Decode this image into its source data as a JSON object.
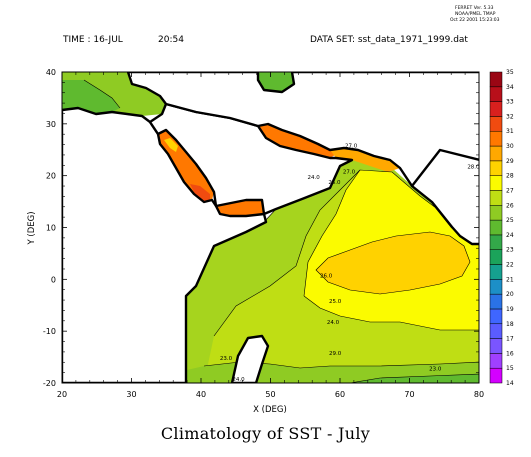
{
  "header": {
    "time_label": "TIME : 16-JUL",
    "time_value": "20:54",
    "dataset_label": "DATA SET: sst_data_1971_1999.dat",
    "ferret_line1": "FERRET Ver. 5.33",
    "ferret_line2": "NOAA/PMEL TMAP",
    "ferret_line3": "Oct 22 2001 15:23:03"
  },
  "caption": "Climatology of SST - July",
  "colors": {
    "land": "#ffffff",
    "coast": "#000000",
    "contour": "#000000"
  },
  "chart_data": {
    "type": "heatmap",
    "title": "Climatology of SST - July",
    "xlabel": "X (DEG)",
    "ylabel": "Y (DEG)",
    "xlim": [
      20,
      80
    ],
    "ylim": [
      -20,
      40
    ],
    "xticks": [
      20,
      30,
      40,
      50,
      60,
      70,
      80
    ],
    "yticks": [
      -20,
      -10,
      0,
      10,
      20,
      30,
      40
    ],
    "colorbar": {
      "levels": [
        14,
        15,
        16,
        17,
        18,
        19,
        20,
        21,
        22,
        23,
        24,
        25,
        26,
        27,
        28,
        29,
        30,
        31,
        32,
        33,
        34,
        35
      ],
      "colors": [
        "#d400ff",
        "#a040ff",
        "#7a55ff",
        "#5a5cff",
        "#3f66ff",
        "#2a72e6",
        "#1c8fc7",
        "#15a08f",
        "#1ba35a",
        "#33a849",
        "#5fba2f",
        "#8fcb23",
        "#bfde14",
        "#fbfb00",
        "#ffd200",
        "#ffa800",
        "#ff7800",
        "#f04b10",
        "#d8201e",
        "#b80f1a",
        "#9a0614"
      ]
    },
    "contour_labels": [
      {
        "text": "29.0",
        "x": 59.3,
        "y": -14.6
      },
      {
        "text": "24.0",
        "x": 59.0,
        "y": -8.6
      },
      {
        "text": "25.0",
        "x": 59.3,
        "y": -4.6
      },
      {
        "text": "26.0",
        "x": 58.0,
        "y": 0.4
      },
      {
        "text": "23.0",
        "x": 73.7,
        "y": -17.6
      },
      {
        "text": "23.0",
        "x": 43.6,
        "y": -15.6
      },
      {
        "text": "24.0",
        "x": 45.4,
        "y": -19.6
      },
      {
        "text": "27.0",
        "x": 61.3,
        "y": 20.4
      },
      {
        "text": "26.0",
        "x": 59.2,
        "y": 18.4
      },
      {
        "text": "24.0",
        "x": 56.2,
        "y": 19.4
      },
      {
        "text": "27.0",
        "x": 61.6,
        "y": 25.4
      },
      {
        "text": "28.0",
        "x": 79.2,
        "y": 21.4
      }
    ]
  }
}
